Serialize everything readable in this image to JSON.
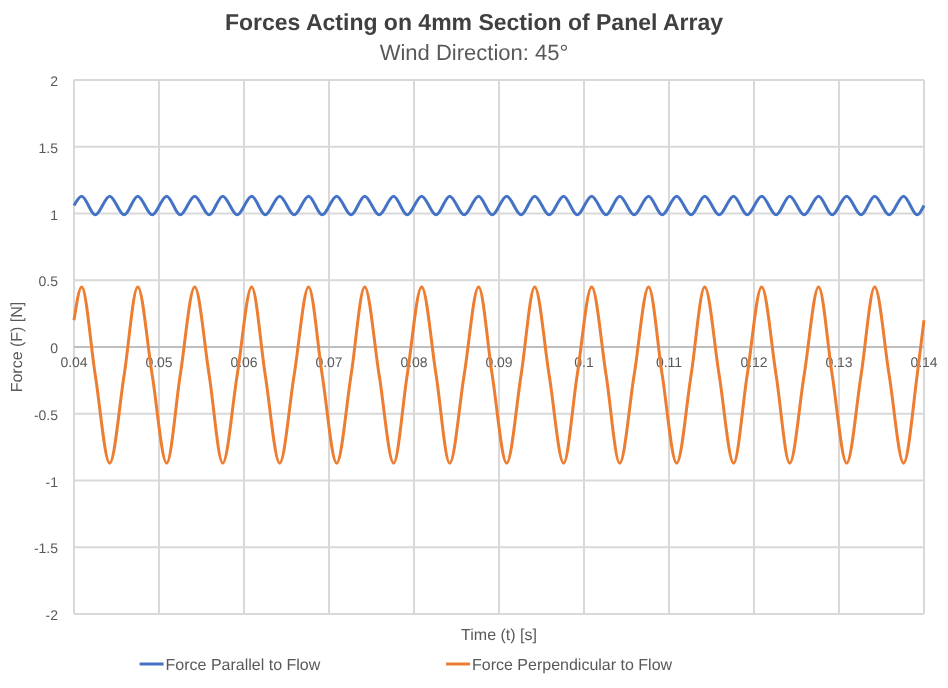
{
  "chart_data": {
    "type": "line",
    "title": "Forces Acting on 4mm Section of Panel Array",
    "subtitle": "Wind Direction: 45°",
    "xlabel": "Time (t) [s]",
    "ylabel": "Force (F) [N]",
    "x": [
      0.04,
      0.0409,
      0.0425,
      0.0442,
      0.0459,
      0.0475,
      0.0492,
      0.0509,
      0.0525,
      0.0542,
      0.0559,
      0.0575,
      0.0592,
      0.0609,
      0.0625,
      0.0642,
      0.0659,
      0.0676,
      0.0692,
      0.0709,
      0.0726,
      0.0742,
      0.0759,
      0.0776,
      0.0792,
      0.0809,
      0.0826,
      0.0842,
      0.0859,
      0.0876,
      0.0892,
      0.0909,
      0.0926,
      0.0942,
      0.0959,
      0.0976,
      0.0992,
      0.1009,
      0.1026,
      0.1042,
      0.1059,
      0.1076,
      0.1092,
      0.1109,
      0.1126,
      0.1142,
      0.1159,
      0.1176,
      0.1192,
      0.1209,
      0.1226,
      0.1242,
      0.1259,
      0.1276,
      0.1292,
      0.1309,
      0.1326,
      0.1342,
      0.1359,
      0.1376,
      0.1392,
      0.14
    ],
    "series": [
      {
        "name": "Force Parallel to Flow",
        "color": "#4472c4",
        "values": [
          1.06,
          1.13,
          0.99,
          1.13,
          0.99,
          1.13,
          0.99,
          1.13,
          0.99,
          1.13,
          0.99,
          1.13,
          0.99,
          1.13,
          0.99,
          1.13,
          0.99,
          1.13,
          0.99,
          1.13,
          0.99,
          1.13,
          0.99,
          1.13,
          0.99,
          1.13,
          0.99,
          1.13,
          0.99,
          1.13,
          0.99,
          1.13,
          0.99,
          1.13,
          0.99,
          1.13,
          0.99,
          1.13,
          0.99,
          1.13,
          0.99,
          1.13,
          0.99,
          1.13,
          0.99,
          1.13,
          0.99,
          1.13,
          0.99,
          1.13,
          0.99,
          1.13,
          0.99,
          1.13,
          0.99,
          1.13,
          0.99,
          1.13,
          0.99,
          1.13,
          0.99,
          1.06
        ]
      },
      {
        "name": "Force Perpendicular to Flow",
        "color": "#ed7d31",
        "values": [
          0.2,
          0.45,
          -0.21,
          -0.87,
          -0.21,
          0.45,
          -0.21,
          -0.87,
          -0.21,
          0.45,
          -0.21,
          -0.87,
          -0.21,
          0.45,
          -0.21,
          -0.87,
          -0.21,
          0.45,
          -0.21,
          -0.87,
          -0.21,
          0.45,
          -0.21,
          -0.87,
          -0.21,
          0.45,
          -0.21,
          -0.87,
          -0.21,
          0.45,
          -0.21,
          -0.87,
          -0.21,
          0.45,
          -0.21,
          -0.87,
          -0.21,
          0.45,
          -0.21,
          -0.87,
          -0.21,
          0.45,
          -0.21,
          -0.87,
          -0.21,
          0.45,
          -0.21,
          -0.87,
          -0.21,
          0.45,
          -0.21,
          -0.87,
          -0.21,
          0.45,
          -0.21,
          -0.87,
          -0.21,
          0.45,
          -0.21,
          -0.87,
          -0.21,
          0.2
        ]
      }
    ],
    "xlim": [
      0.04,
      0.14
    ],
    "xticks": [
      0.04,
      0.05,
      0.06,
      0.07,
      0.08,
      0.09,
      0.1,
      0.11,
      0.12,
      0.13,
      0.14
    ],
    "ylim": [
      -2,
      2
    ],
    "yticks": [
      -2,
      -1.5,
      -1,
      -0.5,
      0,
      0.5,
      1,
      1.5,
      2
    ],
    "grid": true,
    "legend": "bottom",
    "marker": "none",
    "line_style": "solid"
  }
}
